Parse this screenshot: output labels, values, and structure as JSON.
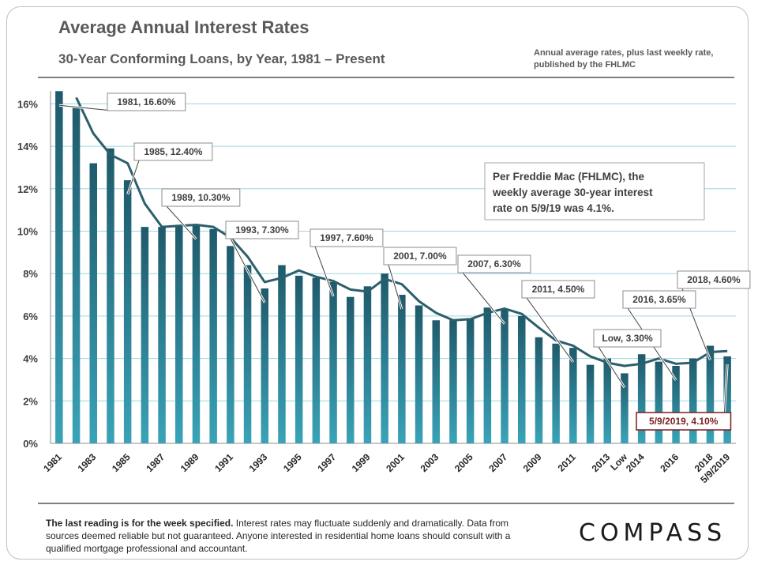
{
  "header": {
    "title": "Average Annual Interest Rates",
    "subtitle": "30-Year Conforming  Loans,  by Year,  1981 – Present",
    "source_line1": "Annual average rates, plus last weekly rate,",
    "source_line2": "published by the FHLMC"
  },
  "footer": {
    "bold": "The last reading is for the week specified.",
    "text": " Interest rates may fluctuate suddenly and dramatically. Data from sources deemed reliable but not guaranteed. Anyone interested in residential home loans should consult with a qualified mortgage professional  and accountant."
  },
  "logo": {
    "text": "COMPASS"
  },
  "colors": {
    "bar_top": "#1f5a6b",
    "bar_bottom": "#3aa3b8",
    "line": "#2b5f6c",
    "grid": "#9fd6df",
    "highlight": "#7a1f1f"
  },
  "chart_data": {
    "type": "bar",
    "title": "Average Annual Interest Rates",
    "ylim": [
      0,
      16.6
    ],
    "yticks": [
      "0%",
      "2%",
      "4%",
      "6%",
      "8%",
      "10%",
      "12%",
      "14%",
      "16%"
    ],
    "grid": true,
    "categories": [
      "1981",
      "1982",
      "1983",
      "1984",
      "1985",
      "1986",
      "1987",
      "1988",
      "1989",
      "1990",
      "1991",
      "1992",
      "1993",
      "1994",
      "1995",
      "1996",
      "1997",
      "1998",
      "1999",
      "2000",
      "2001",
      "2002",
      "2003",
      "2004",
      "2005",
      "2006",
      "2007",
      "2008",
      "2009",
      "2010",
      "2011",
      "2012",
      "2013",
      "Low",
      "2014",
      "2015",
      "2016",
      "2017",
      "2018",
      "5/9/2019"
    ],
    "xtick_labels": [
      "1981",
      "",
      "1983",
      "",
      "1985",
      "",
      "1987",
      "",
      "1989",
      "",
      "1991",
      "",
      "1993",
      "",
      "1995",
      "",
      "1997",
      "",
      "1999",
      "",
      "2001",
      "",
      "2003",
      "",
      "2005",
      "",
      "2007",
      "",
      "2009",
      "",
      "2011",
      "",
      "2013",
      "Low",
      "2014",
      "",
      "2016",
      "",
      "2018",
      "5/9/2019"
    ],
    "values": [
      16.6,
      15.9,
      13.2,
      13.9,
      12.4,
      10.2,
      10.2,
      10.3,
      10.3,
      10.1,
      9.3,
      8.4,
      7.3,
      8.4,
      7.9,
      7.8,
      7.6,
      6.9,
      7.4,
      8.0,
      7.0,
      6.5,
      5.8,
      5.8,
      5.9,
      6.4,
      6.3,
      6.0,
      5.0,
      4.7,
      4.5,
      3.7,
      4.0,
      3.3,
      4.2,
      3.85,
      3.65,
      4.0,
      4.6,
      4.1
    ],
    "trend_line": [
      16.3,
      14.6,
      13.6,
      13.2,
      11.3,
      10.2,
      10.25,
      10.3,
      10.2,
      9.7,
      8.8,
      7.6,
      7.8,
      8.15,
      7.85,
      7.65,
      7.25,
      7.15,
      7.75,
      7.5,
      6.7,
      6.15,
      5.8,
      5.85,
      6.15,
      6.35,
      6.1,
      5.45,
      4.85,
      4.6,
      4.1,
      3.8,
      3.65,
      3.75,
      4.0,
      3.75,
      3.8,
      4.3,
      4.35
    ],
    "annotations": [
      {
        "label": "1981, 16.60%",
        "category": "1981"
      },
      {
        "label": "1985, 12.40%",
        "category": "1985"
      },
      {
        "label": "1989, 10.30%",
        "category": "1989"
      },
      {
        "label": "1993, 7.30%",
        "category": "1993"
      },
      {
        "label": "1997, 7.60%",
        "category": "1997"
      },
      {
        "label": "2001, 7.00%",
        "category": "2001"
      },
      {
        "label": "2007, 6.30%",
        "category": "2007"
      },
      {
        "label": "2011, 4.50%",
        "category": "2011"
      },
      {
        "label": "Low, 3.30%",
        "category": "Low"
      },
      {
        "label": "2016, 3.65%",
        "category": "2016"
      },
      {
        "label": "2018, 4.60%",
        "category": "2018"
      },
      {
        "label": "5/9/2019, 4.10%",
        "category": "5/9/2019",
        "highlight": true
      }
    ],
    "note": "Per Freddie Mac (FHLMC), the weekly average 30-year interest rate on 5/9/19 was 4.1%."
  }
}
